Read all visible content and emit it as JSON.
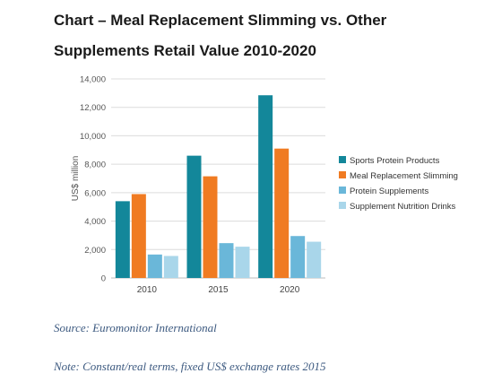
{
  "title": "Chart – Meal Replacement Slimming vs. Other Supplements Retail Value 2010-2020",
  "source": "Source: Euromonitor International",
  "note": "Note:  Constant/real terms, fixed US$ exchange rates 2015",
  "chart_data": {
    "type": "bar",
    "title": "",
    "xlabel": "",
    "ylabel": "US$ million",
    "categories": [
      "2010",
      "2015",
      "2020"
    ],
    "ylim": [
      0,
      14000
    ],
    "yticks": [
      "0",
      "2,000",
      "4,000",
      "6,000",
      "8,000",
      "10,000",
      "12,000",
      "14,000"
    ],
    "grid": true,
    "legend_position": "right",
    "series": [
      {
        "name": "Sports Protein Products",
        "color": "#13879a",
        "values": [
          5400,
          8600,
          12850
        ]
      },
      {
        "name": "Meal Replacement Slimming",
        "color": "#f07b22",
        "values": [
          5900,
          7150,
          9100
        ]
      },
      {
        "name": "Protein Supplements",
        "color": "#6ab7d9",
        "values": [
          1650,
          2450,
          2950
        ]
      },
      {
        "name": "Supplement Nutrition Drinks",
        "color": "#a9d6ea",
        "values": [
          1550,
          2200,
          2550
        ]
      }
    ]
  }
}
